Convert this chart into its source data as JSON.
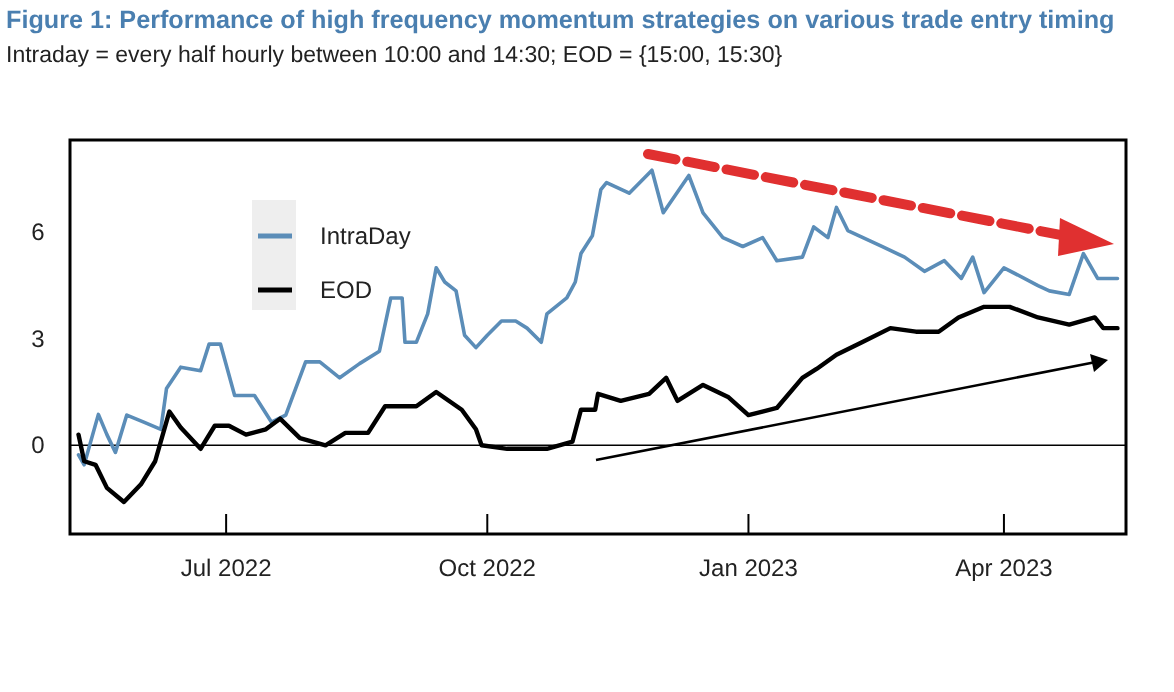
{
  "chart_data": {
    "type": "line",
    "title": "Figure 1: Performance of high frequency momentum strategies on various trade entry timing",
    "subtitle": "Intraday = every half hourly between 10:00 and 14:30; EOD = {15:00, 15:30}",
    "xlim": [
      "2022-05-07",
      "2023-05-14"
    ],
    "xticks": [
      {
        "value": "2022-07-01",
        "label": "Jul 2022"
      },
      {
        "value": "2022-10-01",
        "label": "Oct 2022"
      },
      {
        "value": "2023-01-01",
        "label": "Jan 2023"
      },
      {
        "value": "2023-04-01",
        "label": "Apr 2023"
      }
    ],
    "ylim": [
      -2.5,
      8.6
    ],
    "yticks": [
      0,
      3,
      6
    ],
    "legend": "top left",
    "line_style": "solid",
    "marker": "none",
    "ref_lines": [
      {
        "axis": "y",
        "value": 0,
        "color": "#000000"
      }
    ],
    "series": [
      {
        "name": "IntraDay",
        "color": "#5b8db8",
        "x": [
          "2022-05-10",
          "2022-05-12",
          "2022-05-17",
          "2022-05-20",
          "2022-05-23",
          "2022-05-27",
          "2022-06-02",
          "2022-06-08",
          "2022-06-10",
          "2022-06-15",
          "2022-06-22",
          "2022-06-25",
          "2022-06-29",
          "2022-07-04",
          "2022-07-11",
          "2022-07-17",
          "2022-07-22",
          "2022-07-29",
          "2022-08-03",
          "2022-08-10",
          "2022-08-17",
          "2022-08-24",
          "2022-08-28",
          "2022-09-01",
          "2022-09-02",
          "2022-09-06",
          "2022-09-10",
          "2022-09-13",
          "2022-09-16",
          "2022-09-20",
          "2022-09-23",
          "2022-09-27",
          "2022-10-01",
          "2022-10-06",
          "2022-10-11",
          "2022-10-15",
          "2022-10-20",
          "2022-10-22",
          "2022-10-29",
          "2022-11-01",
          "2022-11-03",
          "2022-11-07",
          "2022-11-10",
          "2022-11-12",
          "2022-11-20",
          "2022-11-28",
          "2022-12-02",
          "2022-12-11",
          "2022-12-16",
          "2022-12-23",
          "2022-12-30",
          "2023-01-06",
          "2023-01-11",
          "2023-01-20",
          "2023-01-24",
          "2023-01-29",
          "2023-02-01",
          "2023-02-05",
          "2023-02-17",
          "2023-02-25",
          "2023-03-04",
          "2023-03-11",
          "2023-03-17",
          "2023-03-21",
          "2023-03-25",
          "2023-04-01",
          "2023-04-13",
          "2023-04-17",
          "2023-04-24",
          "2023-04-29",
          "2023-05-04",
          "2023-05-11"
        ],
        "values": [
          -0.27,
          -0.55,
          0.87,
          0.3,
          -0.2,
          0.85,
          0.65,
          0.45,
          1.6,
          2.2,
          2.1,
          2.85,
          2.85,
          1.4,
          1.4,
          0.65,
          0.85,
          2.35,
          2.35,
          1.9,
          2.3,
          2.65,
          4.15,
          4.15,
          2.9,
          2.9,
          3.7,
          5.0,
          4.6,
          4.35,
          3.1,
          2.75,
          3.1,
          3.5,
          3.5,
          3.3,
          2.9,
          3.7,
          4.15,
          4.6,
          5.4,
          5.9,
          7.2,
          7.4,
          7.1,
          7.75,
          6.55,
          7.6,
          6.55,
          5.85,
          5.6,
          5.85,
          5.2,
          5.3,
          6.15,
          5.85,
          6.7,
          6.05,
          5.6,
          5.3,
          4.9,
          5.2,
          4.7,
          5.3,
          4.3,
          5.0,
          4.5,
          4.35,
          4.25,
          5.4,
          4.7,
          4.7
        ]
      },
      {
        "name": "EOD",
        "color": "#000000",
        "x": [
          "2022-05-10",
          "2022-05-12",
          "2022-05-16",
          "2022-05-20",
          "2022-05-26",
          "2022-06-01",
          "2022-06-06",
          "2022-06-11",
          "2022-06-15",
          "2022-06-22",
          "2022-06-27",
          "2022-07-02",
          "2022-07-08",
          "2022-07-15",
          "2022-07-20",
          "2022-07-27",
          "2022-08-05",
          "2022-08-12",
          "2022-08-20",
          "2022-08-26",
          "2022-09-06",
          "2022-09-13",
          "2022-09-22",
          "2022-09-27",
          "2022-09-29",
          "2022-10-08",
          "2022-10-22",
          "2022-10-31",
          "2022-11-03",
          "2022-11-08",
          "2022-11-09",
          "2022-11-17",
          "2022-11-27",
          "2022-12-03",
          "2022-12-07",
          "2022-12-16",
          "2022-12-25",
          "2023-01-01",
          "2023-01-11",
          "2023-01-20",
          "2023-01-25",
          "2023-02-01",
          "2023-02-10",
          "2023-02-20",
          "2023-03-01",
          "2023-03-09",
          "2023-03-16",
          "2023-03-25",
          "2023-04-03",
          "2023-04-13",
          "2023-04-24",
          "2023-05-03",
          "2023-05-06",
          "2023-05-11"
        ],
        "values": [
          0.3,
          -0.45,
          -0.55,
          -1.2,
          -1.6,
          -1.1,
          -0.45,
          0.95,
          0.5,
          -0.1,
          0.55,
          0.55,
          0.3,
          0.45,
          0.75,
          0.2,
          0,
          0.35,
          0.35,
          1.1,
          1.1,
          1.5,
          1.0,
          0.45,
          0,
          -0.1,
          -0.1,
          0.1,
          1.0,
          1.0,
          1.45,
          1.25,
          1.45,
          1.9,
          1.25,
          1.7,
          1.35,
          0.85,
          1.05,
          1.9,
          2.15,
          2.55,
          2.9,
          3.3,
          3.2,
          3.2,
          3.6,
          3.9,
          3.9,
          3.6,
          3.4,
          3.6,
          3.3,
          3.3
        ]
      }
    ]
  }
}
